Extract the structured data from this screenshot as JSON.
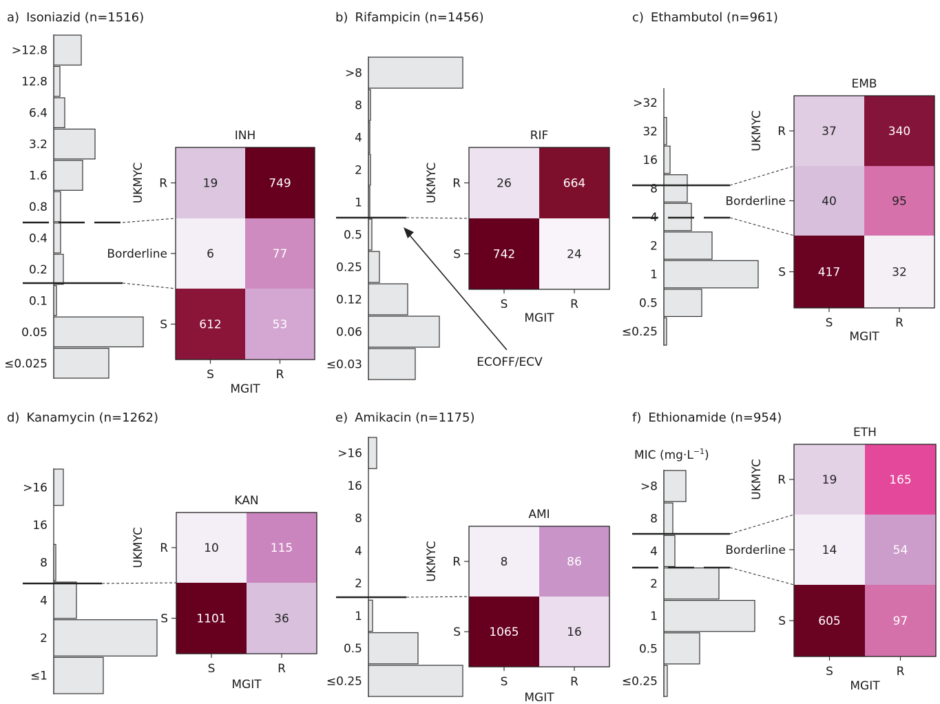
{
  "figure": {
    "annotation": "ECOFF/ECV",
    "mic_label": "MIC (mg·L",
    "mic_label_sup": "−1",
    "mic_label_end": ")"
  },
  "chart_data": [
    {
      "type": "heatmap",
      "panel_label": "a)",
      "panel_title": "Isoniazid (n=1516)",
      "histogram": {
        "categories": [
          ">12.8",
          "12.8",
          "6.4",
          "3.2",
          "1.6",
          "0.8",
          "0.4",
          "0.2",
          "0.1",
          "0.05",
          "≤0.025"
        ],
        "values": [
          40,
          9,
          16,
          60,
          42,
          10,
          10,
          14,
          4,
          130,
          80
        ]
      },
      "ecoff_lines": [
        {
          "between": [
            "0.8",
            "0.4"
          ],
          "style": "dashed"
        },
        {
          "between": [
            "0.2",
            "0.1"
          ],
          "style": "solid"
        }
      ],
      "matrix": {
        "title": "INH",
        "ylabel": "UKMYC",
        "xlabel": "MGIT",
        "rows": [
          "R",
          "Borderline",
          "S"
        ],
        "cols": [
          "S",
          "R"
        ],
        "values": [
          [
            19,
            749
          ],
          [
            6,
            77
          ],
          [
            612,
            53
          ]
        ],
        "colors": [
          [
            "#DCC6E0",
            "#67001F"
          ],
          [
            "#F4EEF6",
            "#CD8BBF"
          ],
          [
            "#8A1538",
            "#D4A7D2"
          ]
        ],
        "text_colors": [
          [
            "#222222",
            "#ffffff"
          ],
          [
            "#222222",
            "#ffffff"
          ],
          [
            "#ffffff",
            "#ffffff"
          ]
        ]
      }
    },
    {
      "type": "heatmap",
      "panel_label": "b)",
      "panel_title": "Rifampicin (n=1456)",
      "histogram": {
        "categories": [
          ">8",
          "8",
          "4",
          "2",
          "1",
          "0.5",
          "0.25",
          "0.12",
          "0.06",
          "≤0.03"
        ],
        "values": [
          137,
          3,
          2,
          3,
          2,
          5,
          16,
          57,
          103,
          68
        ]
      },
      "ecoff_lines": [
        {
          "between": [
            "1",
            "0.5"
          ],
          "style": "solid"
        }
      ],
      "matrix": {
        "title": "RIF",
        "ylabel": "UKMYC",
        "xlabel": "MGIT",
        "rows": [
          "R",
          "S"
        ],
        "cols": [
          "S",
          "R"
        ],
        "values": [
          [
            26,
            664
          ],
          [
            742,
            24
          ]
        ],
        "colors": [
          [
            "#EDE3F0",
            "#7D0F2D"
          ],
          [
            "#67001F",
            "#F8F4F9"
          ]
        ],
        "text_colors": [
          [
            "#222222",
            "#ffffff"
          ],
          [
            "#ffffff",
            "#222222"
          ]
        ]
      }
    },
    {
      "type": "heatmap",
      "panel_label": "c)",
      "panel_title": "Ethambutol (n=961)",
      "histogram": {
        "categories": [
          ">32",
          "32",
          "16",
          "8",
          "4",
          "2",
          "1",
          "0.5",
          "≤0.25"
        ],
        "values": [
          0,
          4,
          9,
          34,
          40,
          70,
          137,
          55,
          4
        ]
      },
      "ecoff_lines": [
        {
          "between": [
            "8",
            "4"
          ],
          "style": "solid"
        },
        {
          "between": [
            "4",
            "2"
          ],
          "style": "dashed"
        }
      ],
      "matrix": {
        "title": "EMB",
        "ylabel": "UKMYC",
        "xlabel": "MGIT",
        "rows": [
          "R",
          "Borderline",
          "S"
        ],
        "cols": [
          "S",
          "R"
        ],
        "values": [
          [
            37,
            340
          ],
          [
            40,
            95
          ],
          [
            417,
            32
          ]
        ],
        "colors": [
          [
            "#E0CCE3",
            "#85143A"
          ],
          [
            "#D8C0DD",
            "#D771AB"
          ],
          [
            "#6A0222",
            "#F5F0F6"
          ]
        ],
        "text_colors": [
          [
            "#222222",
            "#ffffff"
          ],
          [
            "#222222",
            "#222222"
          ],
          [
            "#ffffff",
            "#222222"
          ]
        ]
      }
    },
    {
      "type": "heatmap",
      "panel_label": "d)",
      "panel_title": "Kanamycin (n=1262)",
      "histogram": {
        "categories": [
          ">16",
          "16",
          "8",
          "4",
          "2",
          "≤1"
        ],
        "values": [
          14,
          0,
          3,
          33,
          150,
          72
        ]
      },
      "ecoff_lines": [
        {
          "between": [
            "8",
            "4"
          ],
          "style": "solid"
        }
      ],
      "matrix": {
        "title": "KAN",
        "ylabel": "UKMYC",
        "xlabel": "MGIT",
        "rows": [
          "R",
          "S"
        ],
        "cols": [
          "S",
          "R"
        ],
        "values": [
          [
            10,
            115
          ],
          [
            1101,
            36
          ]
        ],
        "colors": [
          [
            "#F4EEF6",
            "#CB85BE"
          ],
          [
            "#67001F",
            "#D9C1DE"
          ]
        ],
        "text_colors": [
          [
            "#222222",
            "#ffffff"
          ],
          [
            "#ffffff",
            "#222222"
          ]
        ]
      }
    },
    {
      "type": "heatmap",
      "panel_label": "e)",
      "panel_title": "Amikacin (n=1175)",
      "histogram": {
        "categories": [
          ">16",
          "16",
          "8",
          "4",
          "2",
          "1",
          "0.5",
          "≤0.25"
        ],
        "values": [
          12,
          0,
          0,
          0,
          0,
          6,
          72,
          137
        ]
      },
      "ecoff_lines": [
        {
          "between": [
            "2",
            "1"
          ],
          "style": "solid"
        }
      ],
      "matrix": {
        "title": "AMI",
        "ylabel": "UKMYC",
        "xlabel": "MGIT",
        "rows": [
          "R",
          "S"
        ],
        "cols": [
          "S",
          "R"
        ],
        "values": [
          [
            8,
            86
          ],
          [
            1065,
            16
          ]
        ],
        "colors": [
          [
            "#F4EEF6",
            "#C994C8"
          ],
          [
            "#67001F",
            "#EBDDEE"
          ]
        ],
        "text_colors": [
          [
            "#222222",
            "#ffffff"
          ],
          [
            "#ffffff",
            "#222222"
          ]
        ]
      }
    },
    {
      "type": "heatmap",
      "panel_label": "f)",
      "panel_title": "Ethionamide (n=954)",
      "histogram": {
        "categories": [
          ">8",
          "8",
          "4",
          "2",
          "1",
          "0.5",
          "≤0.25"
        ],
        "values": [
          32,
          13,
          16,
          80,
          132,
          52,
          5
        ]
      },
      "ecoff_lines": [
        {
          "between": [
            "8",
            "4"
          ],
          "style": "solid"
        },
        {
          "between": [
            "4",
            "2"
          ],
          "style": "dashed"
        }
      ],
      "matrix": {
        "title": "ETH",
        "ylabel": "UKMYC",
        "xlabel": "MGIT",
        "rows": [
          "R",
          "Borderline",
          "S"
        ],
        "cols": [
          "S",
          "R"
        ],
        "values": [
          [
            19,
            165
          ],
          [
            14,
            54
          ],
          [
            605,
            97
          ]
        ],
        "colors": [
          [
            "#E3D1E6",
            "#E3489A"
          ],
          [
            "#F5EFF7",
            "#CC9CCA"
          ],
          [
            "#6A0222",
            "#D571AA"
          ]
        ],
        "text_colors": [
          [
            "#222222",
            "#ffffff"
          ],
          [
            "#222222",
            "#ffffff"
          ],
          [
            "#ffffff",
            "#ffffff"
          ]
        ]
      }
    }
  ]
}
